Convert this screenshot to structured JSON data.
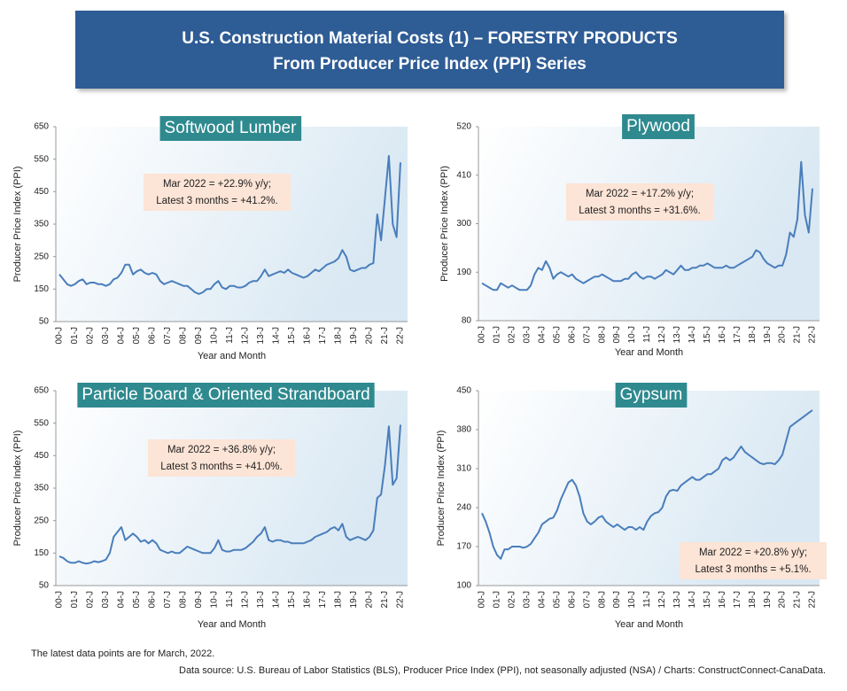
{
  "title_lines": [
    "U.S. Construction Material Costs (1) – FORESTRY PRODUCTS",
    "From Producer Price Index (PPI) Series"
  ],
  "notes": [
    "The latest data points are for March, 2022.",
    "Data source: U.S. Bureau of Labor Statistics (BLS), Producer Price Index (PPI), not seasonally adjusted (NSA) / Charts: ConstructConnect-CanaData."
  ],
  "chart_data": [
    {
      "type": "line",
      "title": "Softwood Lumber",
      "xlabel": "Year and Month",
      "ylabel": "Producer Price Index (PPI)",
      "annotation": [
        "Mar 2022 = +22.9% y/y;",
        "Latest 3 months = +41.2%."
      ],
      "categories": [
        "00-J",
        null,
        null,
        null,
        "01-J",
        null,
        null,
        null,
        "02-J",
        null,
        null,
        null,
        "03-J",
        null,
        null,
        null,
        "04-J",
        null,
        null,
        null,
        "05-J",
        null,
        null,
        null,
        "06-J",
        null,
        null,
        null,
        "07-J",
        null,
        null,
        null,
        "08-J",
        null,
        null,
        null,
        "09-J",
        null,
        null,
        null,
        "10-J",
        null,
        null,
        null,
        "11-J",
        null,
        null,
        null,
        "12-J",
        null,
        null,
        null,
        "13-J",
        null,
        null,
        null,
        "14-J",
        null,
        null,
        null,
        "15-J",
        null,
        null,
        null,
        "16-J",
        null,
        null,
        null,
        "17-J",
        null,
        null,
        null,
        "18-J",
        null,
        null,
        null,
        "19-J",
        null,
        null,
        null,
        "20-J",
        null,
        null,
        null,
        "21-J",
        null,
        null,
        null,
        "22-J"
      ],
      "values": [
        195,
        180,
        165,
        160,
        165,
        175,
        180,
        165,
        170,
        170,
        165,
        165,
        160,
        165,
        180,
        185,
        200,
        225,
        225,
        195,
        205,
        210,
        200,
        195,
        200,
        195,
        175,
        165,
        170,
        175,
        170,
        165,
        160,
        160,
        150,
        140,
        135,
        140,
        150,
        150,
        165,
        175,
        155,
        150,
        160,
        160,
        155,
        155,
        160,
        170,
        175,
        175,
        190,
        210,
        190,
        195,
        200,
        205,
        200,
        210,
        200,
        195,
        190,
        185,
        190,
        200,
        210,
        205,
        215,
        225,
        230,
        235,
        245,
        270,
        250,
        210,
        205,
        210,
        215,
        215,
        225,
        230,
        380,
        300,
        430,
        560,
        350,
        310,
        540
      ],
      "color": "#4a7ebb",
      "ylim": [
        50,
        650
      ],
      "yticks": [
        50,
        150,
        250,
        350,
        450,
        550,
        650
      ],
      "grid": false
    },
    {
      "type": "line",
      "title": "Plywood",
      "xlabel": "Year and Month",
      "ylabel": "Producer Price Index (PPI)",
      "annotation": [
        "Mar 2022 = +17.2% y/y;",
        "Latest 3 months = +31.6%."
      ],
      "categories": [
        "00-J",
        null,
        null,
        null,
        "01-J",
        null,
        null,
        null,
        "02-J",
        null,
        null,
        null,
        "03-J",
        null,
        null,
        null,
        "04-J",
        null,
        null,
        null,
        "05-J",
        null,
        null,
        null,
        "06-J",
        null,
        null,
        null,
        "07-J",
        null,
        null,
        null,
        "08-J",
        null,
        null,
        null,
        "09-J",
        null,
        null,
        null,
        "10-J",
        null,
        null,
        null,
        "11-J",
        null,
        null,
        null,
        "12-J",
        null,
        null,
        null,
        "13-J",
        null,
        null,
        null,
        "14-J",
        null,
        null,
        null,
        "15-J",
        null,
        null,
        null,
        "16-J",
        null,
        null,
        null,
        "17-J",
        null,
        null,
        null,
        "18-J",
        null,
        null,
        null,
        "19-J",
        null,
        null,
        null,
        "20-J",
        null,
        null,
        null,
        "21-J",
        null,
        null,
        null,
        "22-J"
      ],
      "values": [
        165,
        160,
        155,
        150,
        150,
        165,
        160,
        155,
        160,
        155,
        150,
        150,
        150,
        160,
        185,
        200,
        195,
        215,
        200,
        175,
        185,
        190,
        185,
        180,
        185,
        175,
        170,
        165,
        170,
        175,
        180,
        180,
        185,
        180,
        175,
        170,
        170,
        170,
        175,
        175,
        185,
        190,
        180,
        175,
        180,
        180,
        175,
        180,
        185,
        195,
        190,
        185,
        195,
        205,
        195,
        195,
        200,
        200,
        205,
        205,
        210,
        205,
        200,
        200,
        200,
        205,
        200,
        200,
        205,
        210,
        215,
        220,
        225,
        240,
        235,
        220,
        210,
        205,
        200,
        205,
        205,
        230,
        280,
        270,
        310,
        440,
        320,
        280,
        380
      ],
      "color": "#4a7ebb",
      "ylim": [
        80,
        520
      ],
      "yticks": [
        80,
        190,
        300,
        410,
        520
      ],
      "grid": false
    },
    {
      "type": "line",
      "title": "Particle Board & Oriented Strandboard",
      "xlabel": "Year and Month",
      "ylabel": "Producer Price Index (PPI)",
      "annotation": [
        "Mar 2022 = +36.8% y/y;",
        "Latest 3 months = +41.0%."
      ],
      "categories": [
        "00-J",
        null,
        null,
        null,
        "01-J",
        null,
        null,
        null,
        "02-J",
        null,
        null,
        null,
        "03-J",
        null,
        null,
        null,
        "04-J",
        null,
        null,
        null,
        "05-J",
        null,
        null,
        null,
        "06-J",
        null,
        null,
        null,
        "07-J",
        null,
        null,
        null,
        "08-J",
        null,
        null,
        null,
        "09-J",
        null,
        null,
        null,
        "10-J",
        null,
        null,
        null,
        "11-J",
        null,
        null,
        null,
        "12-J",
        null,
        null,
        null,
        "13-J",
        null,
        null,
        null,
        "14-J",
        null,
        null,
        null,
        "15-J",
        null,
        null,
        null,
        "16-J",
        null,
        null,
        null,
        "17-J",
        null,
        null,
        null,
        "18-J",
        null,
        null,
        null,
        "19-J",
        null,
        null,
        null,
        "20-J",
        null,
        null,
        null,
        "21-J",
        null,
        null,
        null,
        "22-J"
      ],
      "values": [
        140,
        135,
        125,
        120,
        120,
        125,
        120,
        118,
        120,
        125,
        122,
        125,
        130,
        150,
        200,
        215,
        230,
        190,
        200,
        210,
        200,
        185,
        190,
        180,
        190,
        180,
        160,
        155,
        150,
        155,
        150,
        150,
        160,
        170,
        165,
        160,
        155,
        150,
        150,
        150,
        165,
        190,
        160,
        155,
        155,
        160,
        160,
        160,
        165,
        175,
        185,
        200,
        210,
        230,
        190,
        185,
        190,
        190,
        185,
        185,
        180,
        180,
        180,
        180,
        185,
        190,
        200,
        205,
        210,
        215,
        225,
        230,
        220,
        240,
        200,
        190,
        195,
        200,
        195,
        190,
        200,
        220,
        320,
        330,
        420,
        540,
        360,
        380,
        545
      ],
      "color": "#4a7ebb",
      "ylim": [
        50,
        650
      ],
      "yticks": [
        50,
        150,
        250,
        350,
        450,
        550,
        650
      ],
      "grid": false
    },
    {
      "type": "line",
      "title": "Gypsum",
      "xlabel": "Year and Month",
      "ylabel": "Producer Price Index (PPI)",
      "annotation": [
        "Mar 2022 = +20.8% y/y;",
        "Latest 3 months = +5.1%."
      ],
      "categories": [
        "00-J",
        null,
        null,
        null,
        "01-J",
        null,
        null,
        null,
        "02-J",
        null,
        null,
        null,
        "03-J",
        null,
        null,
        null,
        "04-J",
        null,
        null,
        null,
        "05-J",
        null,
        null,
        null,
        "06-J",
        null,
        null,
        null,
        "07-J",
        null,
        null,
        null,
        "08-J",
        null,
        null,
        null,
        "09-J",
        null,
        null,
        null,
        "10-J",
        null,
        null,
        null,
        "11-J",
        null,
        null,
        null,
        "12-J",
        null,
        null,
        null,
        "13-J",
        null,
        null,
        null,
        "14-J",
        null,
        null,
        null,
        "15-J",
        null,
        null,
        null,
        "16-J",
        null,
        null,
        null,
        "17-J",
        null,
        null,
        null,
        "18-J",
        null,
        null,
        null,
        "19-J",
        null,
        null,
        null,
        "20-J",
        null,
        null,
        null,
        "21-J",
        null,
        null,
        null,
        "22-J"
      ],
      "values": [
        230,
        215,
        195,
        170,
        155,
        148,
        165,
        165,
        170,
        170,
        170,
        168,
        170,
        175,
        185,
        195,
        210,
        215,
        220,
        222,
        235,
        255,
        270,
        285,
        290,
        280,
        260,
        230,
        215,
        210,
        215,
        222,
        225,
        215,
        210,
        205,
        210,
        205,
        200,
        205,
        205,
        200,
        205,
        200,
        215,
        225,
        230,
        232,
        240,
        260,
        270,
        272,
        270,
        280,
        285,
        290,
        295,
        290,
        290,
        295,
        300,
        300,
        305,
        310,
        325,
        330,
        325,
        330,
        340,
        350,
        340,
        335,
        330,
        325,
        320,
        318,
        320,
        320,
        318,
        325,
        335,
        360,
        385,
        390,
        395,
        400,
        405,
        410,
        415
      ],
      "color": "#4a7ebb",
      "ylim": [
        100,
        450
      ],
      "yticks": [
        100,
        170,
        240,
        310,
        380,
        450
      ],
      "grid": false
    }
  ]
}
